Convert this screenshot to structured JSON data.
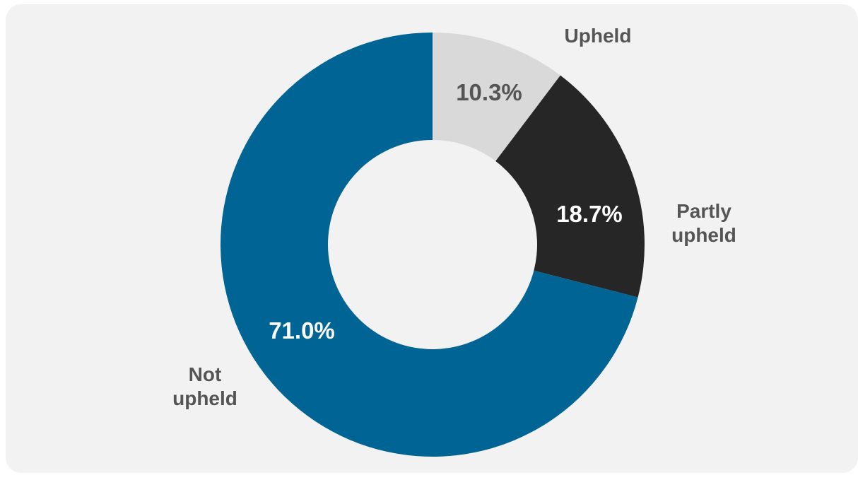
{
  "chart_data": {
    "type": "pie",
    "style": "donut",
    "categories": [
      "Upheld",
      "Partly upheld",
      "Not upheld"
    ],
    "category_lines": [
      [
        "Upheld"
      ],
      [
        "Partly",
        "upheld"
      ],
      [
        "Not",
        "upheld"
      ]
    ],
    "values": [
      10.3,
      18.7,
      71.0
    ],
    "value_labels": [
      "10.3%",
      "18.7%",
      "71.0%"
    ],
    "colors": [
      "#d9d9d9",
      "#262626",
      "#006494"
    ],
    "value_label_colors": [
      "#555555",
      "#ffffff",
      "#ffffff"
    ],
    "start_angle": "12 o'clock",
    "direction": "clockwise",
    "legend": "none (direct labels)"
  },
  "background_color": "#f2f2f3"
}
